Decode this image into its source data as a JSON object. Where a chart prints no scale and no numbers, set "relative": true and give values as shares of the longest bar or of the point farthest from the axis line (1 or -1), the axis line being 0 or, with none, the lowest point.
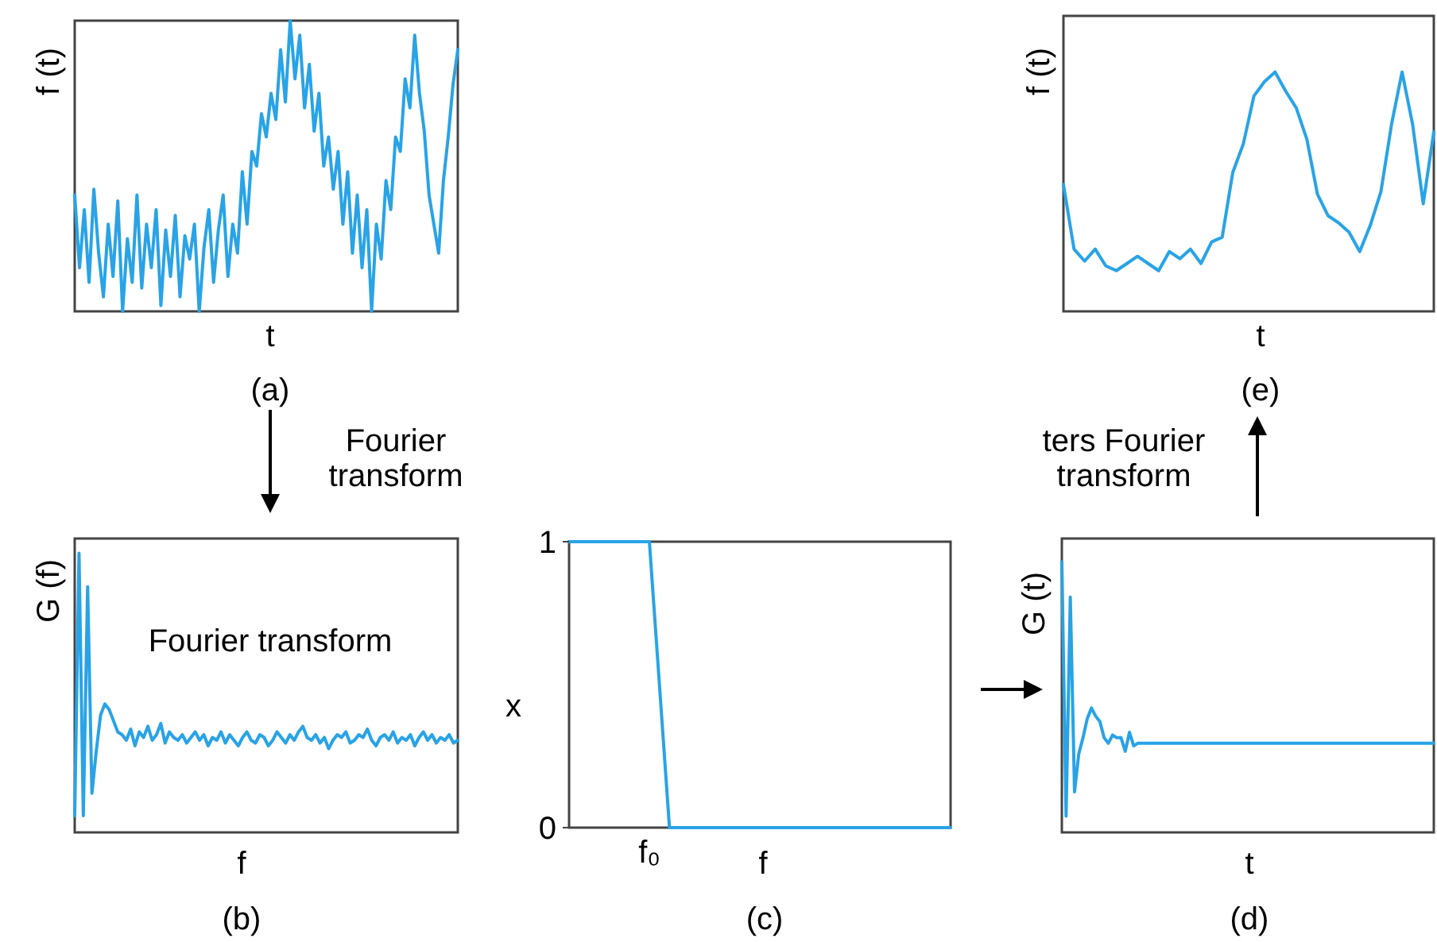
{
  "chart_data": [
    {
      "type": "line",
      "relative": true,
      "xlabel": "t",
      "ylabel": "f (t)",
      "annotations": [
        "(a)"
      ],
      "categories": [
        null,
        null,
        null,
        null,
        null,
        null,
        null,
        null,
        null,
        null,
        null,
        null,
        null,
        null,
        null,
        null,
        null,
        null,
        null,
        null,
        null,
        null,
        null,
        null,
        null,
        null,
        null,
        null,
        null,
        null,
        null,
        null,
        null,
        null,
        null,
        null,
        null,
        null,
        null,
        null,
        null,
        null,
        null,
        null,
        null,
        null,
        null,
        null,
        null,
        null,
        null,
        null,
        null,
        null,
        null,
        null,
        null,
        null,
        null,
        null,
        null,
        null,
        null,
        null,
        null,
        null,
        null,
        null,
        null,
        null,
        null,
        null,
        null,
        null,
        null,
        null,
        null,
        null,
        null,
        null,
        null
      ],
      "series": [
        {
          "color": "#29a3e6",
          "values": [
            0.4,
            0.15,
            0.35,
            0.1,
            0.42,
            0.2,
            0.05,
            0.3,
            0.12,
            0.38,
            0.0,
            0.25,
            0.1,
            0.4,
            0.08,
            0.3,
            0.15,
            0.35,
            0.02,
            0.28,
            0.12,
            0.33,
            0.05,
            0.26,
            0.18,
            0.3,
            0.0,
            0.22,
            0.35,
            0.1,
            0.28,
            0.4,
            0.12,
            0.3,
            0.2,
            0.48,
            0.3,
            0.55,
            0.5,
            0.68,
            0.6,
            0.75,
            0.66,
            0.9,
            0.72,
            1.0,
            0.8,
            0.95,
            0.7,
            0.85,
            0.62,
            0.75,
            0.5,
            0.6,
            0.42,
            0.55,
            0.3,
            0.48,
            0.2,
            0.4,
            0.15,
            0.35,
            0.0,
            0.3,
            0.18,
            0.45,
            0.35,
            0.6,
            0.55,
            0.8,
            0.7,
            0.95,
            0.75,
            0.62,
            0.4,
            0.3,
            0.2,
            0.45,
            0.6,
            0.78,
            0.9
          ]
        }
      ]
    },
    {
      "type": "line",
      "relative": true,
      "xlabel": "t",
      "ylabel": "f (t)",
      "annotations": [
        "(e)"
      ],
      "categories": [
        null,
        null,
        null,
        null,
        null,
        null,
        null,
        null,
        null,
        null,
        null,
        null,
        null,
        null,
        null,
        null,
        null,
        null,
        null,
        null,
        null,
        null,
        null,
        null,
        null,
        null,
        null,
        null,
        null,
        null,
        null,
        null,
        null,
        null,
        null,
        null
      ],
      "series": [
        {
          "color": "#29a3e6",
          "values": [
            0.53,
            0.26,
            0.21,
            0.26,
            0.19,
            0.17,
            0.2,
            0.23,
            0.2,
            0.17,
            0.25,
            0.22,
            0.26,
            0.2,
            0.29,
            0.31,
            0.58,
            0.7,
            0.9,
            0.96,
            1.0,
            0.92,
            0.85,
            0.72,
            0.49,
            0.4,
            0.37,
            0.33,
            0.25,
            0.36,
            0.5,
            0.78,
            1.0,
            0.78,
            0.45,
            0.75
          ]
        }
      ]
    },
    {
      "type": "line",
      "relative": true,
      "xlabel": "f",
      "ylabel": "G (f)",
      "annotations": [
        "Fourier transform",
        "Fourier transform",
        "(b)"
      ],
      "categories": [
        null,
        null,
        null,
        null,
        null,
        null,
        null,
        null,
        null,
        null,
        null,
        null,
        null,
        null,
        null,
        null,
        null,
        null,
        null,
        null,
        null,
        null,
        null,
        null,
        null,
        null,
        null,
        null,
        null,
        null,
        null,
        null,
        null,
        null,
        null,
        null,
        null,
        null,
        null,
        null,
        null,
        null,
        null,
        null,
        null,
        null,
        null,
        null,
        null,
        null,
        null,
        null,
        null,
        null,
        null,
        null,
        null,
        null,
        null,
        null,
        null,
        null,
        null,
        null,
        null,
        null,
        null,
        null,
        null,
        null,
        null,
        null,
        null,
        null,
        null,
        null,
        null,
        null,
        null,
        null,
        null,
        null,
        null,
        null,
        null,
        null,
        null,
        null,
        null,
        null
      ],
      "series": [
        {
          "color": "#29a3e6",
          "values": [
            0.06,
            1.0,
            0.06,
            0.88,
            0.14,
            0.29,
            0.42,
            0.46,
            0.44,
            0.4,
            0.36,
            0.35,
            0.33,
            0.37,
            0.31,
            0.36,
            0.34,
            0.38,
            0.33,
            0.35,
            0.39,
            0.32,
            0.36,
            0.34,
            0.33,
            0.35,
            0.32,
            0.34,
            0.36,
            0.33,
            0.35,
            0.31,
            0.34,
            0.33,
            0.36,
            0.32,
            0.35,
            0.33,
            0.31,
            0.34,
            0.36,
            0.33,
            0.32,
            0.35,
            0.34,
            0.31,
            0.33,
            0.36,
            0.34,
            0.32,
            0.35,
            0.33,
            0.36,
            0.38,
            0.34,
            0.33,
            0.35,
            0.32,
            0.34,
            0.3,
            0.33,
            0.35,
            0.34,
            0.36,
            0.32,
            0.33,
            0.35,
            0.34,
            0.37,
            0.33,
            0.31,
            0.34,
            0.35,
            0.33,
            0.36,
            0.32,
            0.34,
            0.33,
            0.35,
            0.31,
            0.34,
            0.36,
            0.33,
            0.35,
            0.32,
            0.34,
            0.33,
            0.35,
            0.32,
            0.33
          ]
        }
      ]
    },
    {
      "type": "line",
      "xlabel": "f",
      "ylabel": "x",
      "annotations": [
        "(c)"
      ],
      "ylim": [
        0,
        1
      ],
      "yticks": [
        0,
        1
      ],
      "categories": [
        null,
        null,
        null,
        null,
        "f₀",
        null,
        null,
        null,
        null,
        null,
        null,
        null,
        null,
        null,
        null,
        null,
        null,
        null,
        null,
        null
      ],
      "series": [
        {
          "color": "#29a3e6",
          "values": [
            1,
            1,
            1,
            1,
            1,
            0,
            0,
            0,
            0,
            0,
            0,
            0,
            0,
            0,
            0,
            0,
            0,
            0,
            0,
            0
          ]
        }
      ]
    },
    {
      "type": "line",
      "relative": true,
      "xlabel": "t",
      "ylabel": "G (t)",
      "annotations": [
        "ters Fourier transform",
        "(d)"
      ],
      "categories": [
        null,
        null,
        null,
        null,
        null,
        null,
        null,
        null,
        null,
        null,
        null,
        null,
        null,
        null,
        null,
        null,
        null,
        null,
        null,
        null,
        null,
        null,
        null,
        null,
        null,
        null,
        null,
        null,
        null,
        null,
        null,
        null,
        null,
        null,
        null,
        null,
        null,
        null,
        null,
        null,
        null,
        null,
        null,
        null,
        null,
        null,
        null,
        null,
        null,
        null,
        null,
        null,
        null,
        null,
        null,
        null,
        null,
        null,
        null,
        null,
        null,
        null,
        null,
        null,
        null,
        null,
        null,
        null,
        null,
        null,
        null,
        null,
        null,
        null,
        null,
        null,
        null,
        null,
        null,
        null,
        null,
        null,
        null,
        null,
        null,
        null,
        null,
        null,
        null
      ],
      "series": [
        {
          "color": "#29a3e6",
          "values": [
            1.0,
            0.06,
            0.87,
            0.15,
            0.29,
            0.35,
            0.42,
            0.46,
            0.43,
            0.41,
            0.35,
            0.33,
            0.36,
            0.35,
            0.35,
            0.3,
            0.37,
            0.32,
            0.33,
            0.33,
            0.33,
            0.33,
            0.33,
            0.33,
            0.33,
            0.33,
            0.33,
            0.33,
            0.33,
            0.33,
            0.33,
            0.33,
            0.33,
            0.33,
            0.33,
            0.33,
            0.33,
            0.33,
            0.33,
            0.33,
            0.33,
            0.33,
            0.33,
            0.33,
            0.33,
            0.33,
            0.33,
            0.33,
            0.33,
            0.33,
            0.33,
            0.33,
            0.33,
            0.33,
            0.33,
            0.33,
            0.33,
            0.33,
            0.33,
            0.33,
            0.33,
            0.33,
            0.33,
            0.33,
            0.33,
            0.33,
            0.33,
            0.33,
            0.33,
            0.33,
            0.33,
            0.33,
            0.33,
            0.33,
            0.33,
            0.33,
            0.33,
            0.33,
            0.33,
            0.33,
            0.33,
            0.33,
            0.33,
            0.33,
            0.33,
            0.33,
            0.33,
            0.33,
            0.33
          ]
        }
      ]
    }
  ]
}
